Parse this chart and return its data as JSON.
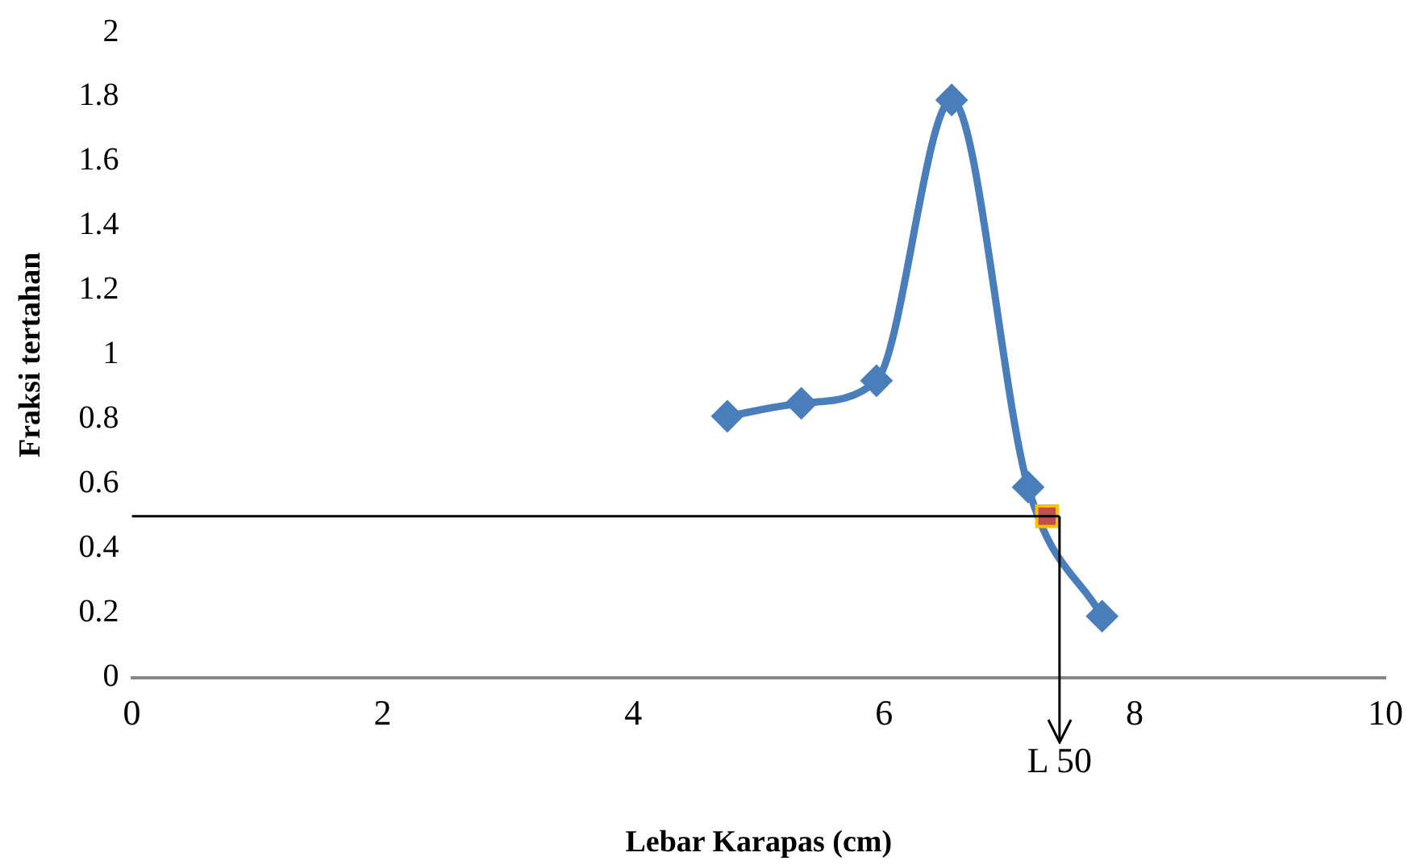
{
  "chart_data": {
    "type": "line",
    "xlabel": "Lebar Karapas (cm)",
    "ylabel": "Fraksi tertahan",
    "xlim": [
      0,
      10
    ],
    "xticks": [
      0,
      2,
      4,
      6,
      8,
      10
    ],
    "ylim": [
      0,
      2
    ],
    "yticks": [
      0,
      0.2,
      0.4,
      0.6,
      0.8,
      1,
      1.2,
      1.4,
      1.6,
      1.8,
      2
    ],
    "grid": false,
    "legend": false,
    "marker": "diamond",
    "line_style": "solid",
    "series": [
      {
        "color": "#4a7ebb",
        "x": [
          4.75,
          5.34,
          5.94,
          6.54,
          7.15,
          7.74
        ],
        "values": [
          0.81,
          0.85,
          0.92,
          1.79,
          0.59,
          0.19
        ]
      },
      {
        "type": "scatter",
        "marker": "square",
        "color": "#c0504d",
        "x": [
          7.3
        ],
        "values": [
          0.5
        ]
      }
    ],
    "ref_lines": [
      {
        "axis": "y",
        "value": 0.5,
        "color": "#000000"
      },
      {
        "axis": "x",
        "value": 7.4,
        "label": "L 50",
        "color": "#000000"
      }
    ]
  }
}
